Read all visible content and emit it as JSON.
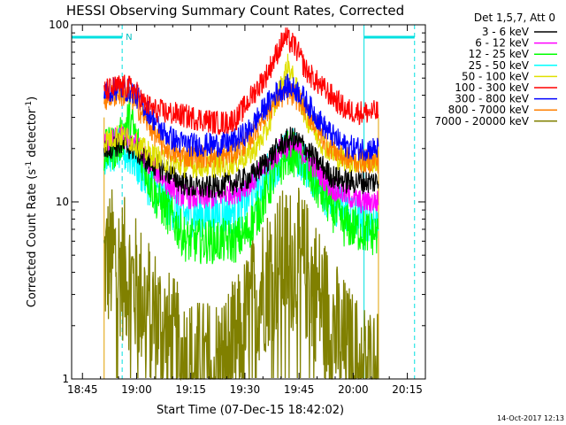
{
  "chart_data": {
    "type": "line",
    "title": "HESSI Observing Summary Count Rates, Corrected",
    "xlabel": "Start Time (07-Dec-15 18:42:02)",
    "ylabel_main": "Corrected Count Rate (s",
    "ylabel_sup1": "-1",
    "ylabel_mid": " detector",
    "ylabel_sup2": "-1",
    "ylabel_end": ")",
    "y_scale": "log",
    "ylim": [
      1,
      100
    ],
    "xlim": [
      "18:42",
      "20:20"
    ],
    "x_ticks": [
      "18:45",
      "19:00",
      "19:15",
      "19:30",
      "19:45",
      "20:00",
      "20:15"
    ],
    "y_ticks": [
      "1",
      "10",
      "100"
    ],
    "legend_title": "Det 1,5,7, Att 0",
    "legend_position": "right",
    "timestamp": "14-Oct-2017 12:13",
    "annotations": {
      "night_label": "N"
    },
    "bars": [
      {
        "start": "18:42",
        "end": "18:56",
        "color": "#00e0e0"
      },
      {
        "start": "20:03",
        "end": "20:17",
        "color": "#00e0e0"
      }
    ],
    "dashed_markers": [
      "18:56",
      "20:17"
    ],
    "solid_markers": [
      "18:42",
      "20:03"
    ],
    "coverage": {
      "start": "18:51",
      "end": "20:07"
    },
    "series": [
      {
        "name": "3 - 6 keV",
        "color": "#000000",
        "points": [
          [
            "18:51",
            20
          ],
          [
            "18:55",
            21
          ],
          [
            "18:59",
            20
          ],
          [
            "19:03",
            17
          ],
          [
            "19:08",
            15
          ],
          [
            "19:12",
            13
          ],
          [
            "19:16",
            12
          ],
          [
            "19:20",
            12
          ],
          [
            "19:24",
            12.5
          ],
          [
            "19:28",
            13
          ],
          [
            "19:32",
            14
          ],
          [
            "19:36",
            17
          ],
          [
            "19:40",
            21
          ],
          [
            "19:43",
            23
          ],
          [
            "19:46",
            21
          ],
          [
            "19:50",
            17
          ],
          [
            "19:54",
            14
          ],
          [
            "19:58",
            13
          ],
          [
            "20:02",
            13
          ],
          [
            "20:07",
            13
          ]
        ]
      },
      {
        "name": "6 - 12 keV",
        "color": "#ff00ff",
        "points": [
          [
            "18:51",
            21
          ],
          [
            "18:55",
            23
          ],
          [
            "18:59",
            22
          ],
          [
            "19:03",
            17
          ],
          [
            "19:08",
            13
          ],
          [
            "19:12",
            11
          ],
          [
            "19:16",
            10.5
          ],
          [
            "19:20",
            10.5
          ],
          [
            "19:24",
            11
          ],
          [
            "19:28",
            11.5
          ],
          [
            "19:32",
            13
          ],
          [
            "19:36",
            16
          ],
          [
            "19:40",
            20
          ],
          [
            "19:43",
            21
          ],
          [
            "19:46",
            19
          ],
          [
            "19:50",
            15
          ],
          [
            "19:54",
            12
          ],
          [
            "19:58",
            11
          ],
          [
            "20:02",
            10
          ],
          [
            "20:07",
            10
          ]
        ]
      },
      {
        "name": "12 - 25 keV",
        "color": "#00ff00",
        "points": [
          [
            "18:51",
            19
          ],
          [
            "18:55",
            21
          ],
          [
            "18:58",
            30
          ],
          [
            "19:01",
            19
          ],
          [
            "19:05",
            11
          ],
          [
            "19:10",
            8
          ],
          [
            "19:14",
            6
          ],
          [
            "19:18",
            6
          ],
          [
            "19:23",
            6
          ],
          [
            "19:27",
            6
          ],
          [
            "19:30",
            6.5
          ],
          [
            "19:34",
            9
          ],
          [
            "19:38",
            14
          ],
          [
            "19:42",
            19
          ],
          [
            "19:45",
            18
          ],
          [
            "19:49",
            13
          ],
          [
            "19:53",
            10
          ],
          [
            "19:57",
            7.5
          ],
          [
            "20:01",
            7
          ],
          [
            "20:07",
            6.5
          ]
        ]
      },
      {
        "name": "25 - 50 keV",
        "color": "#00ffff",
        "points": [
          [
            "18:51",
            19
          ],
          [
            "18:55",
            20
          ],
          [
            "18:59",
            18
          ],
          [
            "19:03",
            13
          ],
          [
            "19:08",
            10
          ],
          [
            "19:12",
            8.5
          ],
          [
            "19:16",
            8.5
          ],
          [
            "19:20",
            8.5
          ],
          [
            "19:24",
            8.5
          ],
          [
            "19:28",
            9
          ],
          [
            "19:32",
            11
          ],
          [
            "19:36",
            14
          ],
          [
            "19:40",
            18
          ],
          [
            "19:43",
            20
          ],
          [
            "19:46",
            17
          ],
          [
            "19:50",
            13
          ],
          [
            "19:54",
            10
          ],
          [
            "19:58",
            9
          ],
          [
            "20:02",
            8
          ],
          [
            "20:07",
            8
          ]
        ]
      },
      {
        "name": "50 - 100 keV",
        "color": "#e0e000",
        "points": [
          [
            "18:51",
            22
          ],
          [
            "18:55",
            24
          ],
          [
            "18:59",
            22
          ],
          [
            "19:03",
            19
          ],
          [
            "19:08",
            17
          ],
          [
            "19:12",
            16
          ],
          [
            "19:16",
            16
          ],
          [
            "19:20",
            16
          ],
          [
            "19:24",
            16
          ],
          [
            "19:28",
            17
          ],
          [
            "19:32",
            19
          ],
          [
            "19:36",
            25
          ],
          [
            "19:40",
            45
          ],
          [
            "19:42",
            60
          ],
          [
            "19:44",
            45
          ],
          [
            "19:47",
            30
          ],
          [
            "19:51",
            22
          ],
          [
            "19:55",
            18
          ],
          [
            "19:59",
            17
          ],
          [
            "20:03",
            17
          ],
          [
            "20:07",
            17
          ]
        ]
      },
      {
        "name": "100 - 300 keV",
        "color": "#ff0000",
        "points": [
          [
            "18:51",
            42
          ],
          [
            "18:55",
            45
          ],
          [
            "18:59",
            44
          ],
          [
            "19:02",
            36
          ],
          [
            "19:05",
            33
          ],
          [
            "19:08",
            32
          ],
          [
            "19:12",
            31
          ],
          [
            "19:15",
            30
          ],
          [
            "19:19",
            29
          ],
          [
            "19:22",
            28
          ],
          [
            "19:25",
            28
          ],
          [
            "19:28",
            30
          ],
          [
            "19:32",
            40
          ],
          [
            "19:36",
            52
          ],
          [
            "19:39",
            70
          ],
          [
            "19:41",
            85
          ],
          [
            "19:44",
            75
          ],
          [
            "19:47",
            55
          ],
          [
            "19:51",
            45
          ],
          [
            "19:55",
            38
          ],
          [
            "19:58",
            33
          ],
          [
            "20:02",
            32
          ],
          [
            "20:07",
            32
          ]
        ]
      },
      {
        "name": "300 - 800 keV",
        "color": "#0000ff",
        "points": [
          [
            "18:51",
            41
          ],
          [
            "18:55",
            44
          ],
          [
            "18:59",
            42
          ],
          [
            "19:03",
            33
          ],
          [
            "19:07",
            25
          ],
          [
            "19:11",
            22
          ],
          [
            "19:15",
            21
          ],
          [
            "19:19",
            21
          ],
          [
            "19:23",
            21
          ],
          [
            "19:27",
            22
          ],
          [
            "19:31",
            25
          ],
          [
            "19:35",
            33
          ],
          [
            "19:39",
            42
          ],
          [
            "19:42",
            45
          ],
          [
            "19:45",
            42
          ],
          [
            "19:49",
            32
          ],
          [
            "19:53",
            25
          ],
          [
            "19:57",
            21
          ],
          [
            "20:01",
            20
          ],
          [
            "20:07",
            20
          ]
        ]
      },
      {
        "name": "800 - 7000 keV",
        "color": "#ff8000",
        "points": [
          [
            "18:51",
            38
          ],
          [
            "18:55",
            41
          ],
          [
            "18:59",
            38
          ],
          [
            "19:03",
            28
          ],
          [
            "19:07",
            21
          ],
          [
            "19:11",
            18.5
          ],
          [
            "19:15",
            18
          ],
          [
            "19:19",
            18
          ],
          [
            "19:23",
            18
          ],
          [
            "19:27",
            19
          ],
          [
            "19:31",
            22
          ],
          [
            "19:35",
            30
          ],
          [
            "19:39",
            38
          ],
          [
            "19:42",
            41
          ],
          [
            "19:45",
            38
          ],
          [
            "19:49",
            28
          ],
          [
            "19:53",
            21
          ],
          [
            "19:57",
            18
          ],
          [
            "20:01",
            17
          ],
          [
            "20:07",
            17
          ]
        ]
      },
      {
        "name": "7000 - 20000 keV",
        "color": "#808000",
        "points": [
          [
            "18:51",
            4.5
          ],
          [
            "18:54",
            4.8
          ],
          [
            "18:57",
            4
          ],
          [
            "19:00",
            3.2
          ],
          [
            "19:03",
            2.6
          ],
          [
            "19:06",
            2.1
          ],
          [
            "19:09",
            1.6
          ],
          [
            "19:12",
            1.3
          ],
          [
            "19:16",
            1.1
          ],
          [
            "19:20",
            1.1
          ],
          [
            "19:24",
            1.2
          ],
          [
            "19:28",
            1.5
          ],
          [
            "19:31",
            2.2
          ],
          [
            "19:34",
            3.2
          ],
          [
            "19:38",
            4.3
          ],
          [
            "19:42",
            4.8
          ],
          [
            "19:45",
            4.6
          ],
          [
            "19:48",
            3.8
          ],
          [
            "19:51",
            2.8
          ],
          [
            "19:54",
            2.0
          ],
          [
            "19:58",
            1.4
          ],
          [
            "20:02",
            1.1
          ],
          [
            "20:07",
            1.0
          ]
        ]
      }
    ]
  }
}
